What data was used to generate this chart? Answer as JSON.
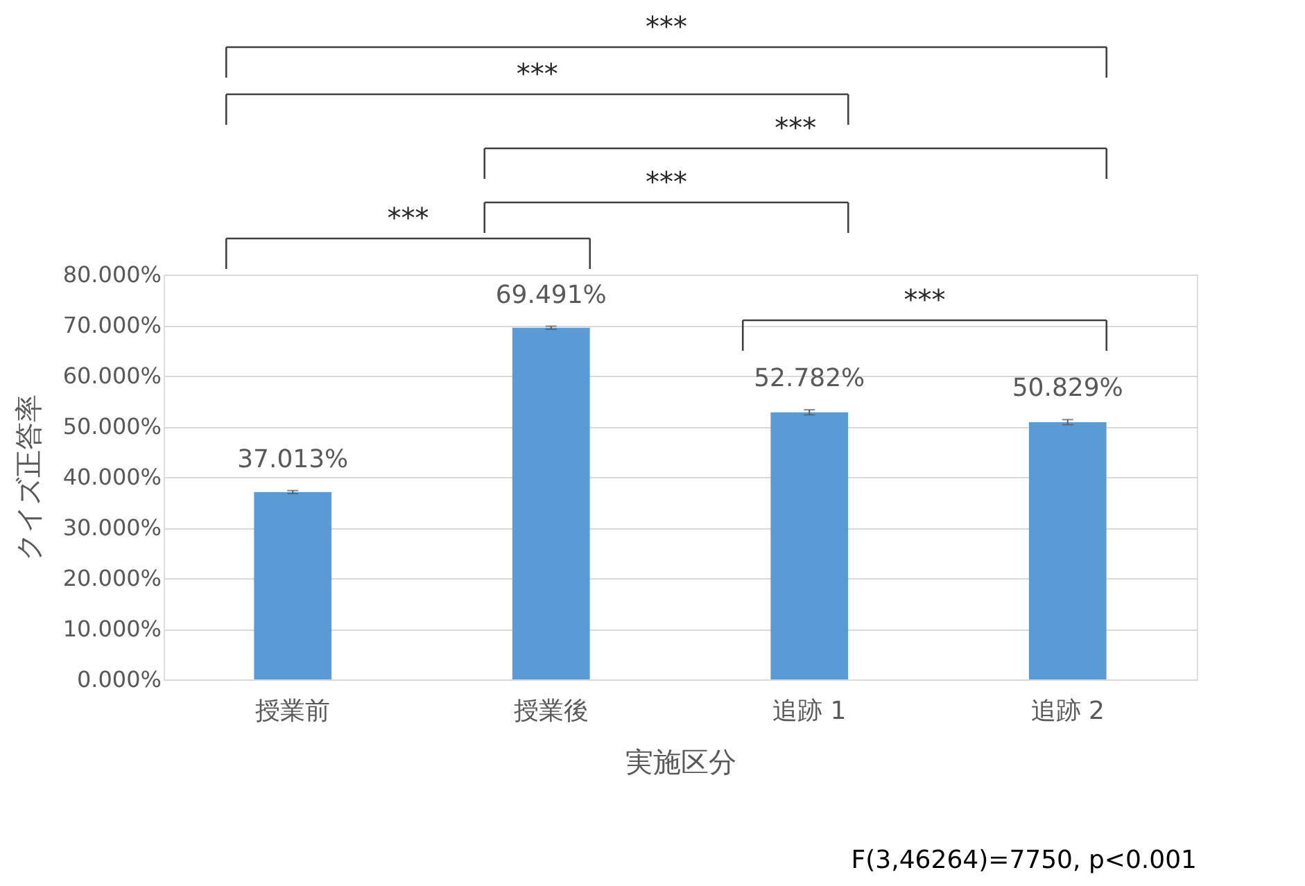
{
  "chart_data": {
    "type": "bar",
    "categories": [
      "授業前",
      "授業後",
      "追跡 1",
      "追跡 2"
    ],
    "values": [
      37.013,
      69.491,
      52.782,
      50.829
    ],
    "errors": [
      0.3,
      0.3,
      0.5,
      0.5
    ],
    "value_labels": [
      "37.013%",
      "69.491%",
      "52.782%",
      "50.829%"
    ],
    "color": "#5b9bd5",
    "xlabel": "実施区分",
    "ylabel": "クイズ正答率",
    "ylim": [
      0,
      80
    ],
    "yticks": [
      {
        "value": 0,
        "label": "0.000%"
      },
      {
        "value": 10,
        "label": "10.000%"
      },
      {
        "value": 20,
        "label": "20.000%"
      },
      {
        "value": 30,
        "label": "30.000%"
      },
      {
        "value": 40,
        "label": "40.000%"
      },
      {
        "value": 50,
        "label": "50.000%"
      },
      {
        "value": 60,
        "label": "60.000%"
      },
      {
        "value": 70,
        "label": "70.000%"
      },
      {
        "value": 80,
        "label": "80.000%"
      }
    ],
    "grid": "y",
    "annotations": [
      "***",
      "***",
      "***",
      "***",
      "***",
      "***",
      "F(3,46264)=7750, p<0.001"
    ]
  }
}
